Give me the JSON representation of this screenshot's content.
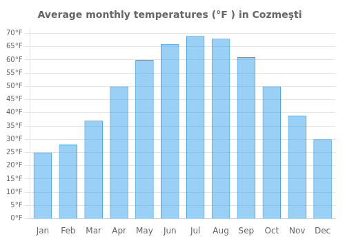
{
  "chart_data": {
    "type": "bar",
    "title": "Average monthly temperatures (°F ) in Cozmeşti",
    "categories": [
      "Jan",
      "Feb",
      "Mar",
      "Apr",
      "May",
      "Jun",
      "Jul",
      "Aug",
      "Sep",
      "Oct",
      "Nov",
      "Dec"
    ],
    "values": [
      25,
      28,
      37,
      50,
      60,
      66,
      69,
      68,
      61,
      50,
      39,
      30
    ],
    "ylim": [
      0,
      72
    ],
    "yticks": [
      {
        "value": 0,
        "label": "0°F"
      },
      {
        "value": 5,
        "label": "5°F"
      },
      {
        "value": 10,
        "label": "10°F"
      },
      {
        "value": 15,
        "label": "15°F"
      },
      {
        "value": 20,
        "label": "20°F"
      },
      {
        "value": 25,
        "label": "25°F"
      },
      {
        "value": 30,
        "label": "30°F"
      },
      {
        "value": 35,
        "label": "35°F"
      },
      {
        "value": 40,
        "label": "40°F"
      },
      {
        "value": 45,
        "label": "45°F"
      },
      {
        "value": 50,
        "label": "50°F"
      },
      {
        "value": 55,
        "label": "55°F"
      },
      {
        "value": 60,
        "label": "60°F"
      },
      {
        "value": 65,
        "label": "65°F"
      },
      {
        "value": 70,
        "label": "70°F"
      }
    ],
    "grid": true
  }
}
